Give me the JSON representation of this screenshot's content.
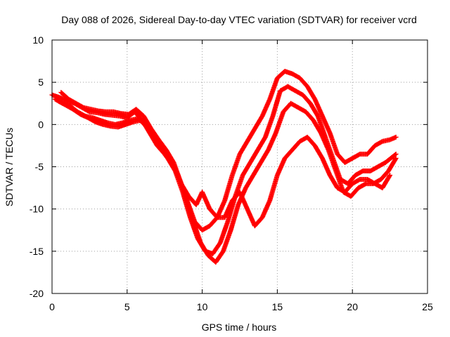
{
  "chart_data": {
    "type": "scatter",
    "title": "Day 088 of 2026, Sidereal Day-to-day VTEC variation (SDTVAR) for receiver vcrd",
    "xlabel": "GPS time / hours",
    "ylabel": "SDTVAR / TECUs",
    "xlim": [
      0,
      25
    ],
    "ylim": [
      -20,
      10
    ],
    "x_ticks": [
      0,
      5,
      10,
      15,
      20,
      25
    ],
    "y_ticks": [
      -20,
      -15,
      -10,
      -5,
      0,
      5,
      10
    ],
    "grid": true,
    "legend": "none",
    "marker": "plus",
    "color": "#ff0000",
    "series": [
      {
        "name": "track-1",
        "x": [
          0.0,
          0.5,
          1.0,
          1.5,
          2.0,
          2.5,
          3.0,
          3.5,
          4.0,
          4.5,
          5.0,
          5.5,
          6.0,
          6.5,
          7.0,
          7.5,
          8.0,
          8.5,
          9.0,
          9.5,
          10.0,
          10.5,
          11.0,
          11.5,
          12.0,
          12.5,
          13.0,
          13.5,
          14.0,
          14.5,
          15.0,
          15.5,
          16.0,
          16.5,
          17.0,
          17.5,
          18.0,
          18.5,
          19.0,
          19.5,
          20.0,
          20.5,
          21.0,
          21.5,
          22.0,
          22.5,
          22.9
        ],
        "y": [
          3.5,
          3.2,
          2.8,
          2.5,
          2.0,
          1.5,
          1.4,
          1.2,
          1.1,
          1.0,
          0.8,
          1.5,
          0.5,
          -1.0,
          -2.5,
          -3.5,
          -4.5,
          -6.5,
          -9.0,
          -11.5,
          -12.5,
          -12.0,
          -11.0,
          -9.0,
          -6.0,
          -3.5,
          -2.0,
          -0.5,
          1.0,
          3.0,
          5.5,
          6.3,
          6.0,
          5.5,
          4.5,
          3.0,
          1.0,
          -1.0,
          -3.5,
          -4.5,
          -4.0,
          -3.5,
          -3.5,
          -2.5,
          -2.0,
          -1.8,
          -1.5
        ]
      },
      {
        "name": "track-2",
        "x": [
          0.2,
          0.7,
          1.2,
          1.7,
          2.2,
          2.7,
          3.2,
          3.7,
          4.2,
          4.7,
          5.2,
          5.7,
          6.2,
          6.7,
          7.2,
          7.7,
          8.2,
          8.7,
          9.2,
          9.7,
          10.2,
          10.7,
          11.2,
          11.7,
          12.2,
          12.7,
          13.2,
          13.7,
          14.2,
          14.7,
          15.2,
          15.7,
          16.2,
          16.7,
          17.2,
          17.7,
          18.2,
          18.7,
          19.2,
          19.7,
          20.2,
          20.7,
          21.2,
          21.7,
          22.2,
          22.9
        ],
        "y": [
          3.0,
          2.5,
          2.2,
          1.5,
          1.0,
          0.8,
          0.5,
          0.2,
          0.0,
          0.2,
          0.5,
          0.7,
          0.0,
          -1.5,
          -2.8,
          -4.0,
          -5.5,
          -8.0,
          -11.0,
          -13.5,
          -15.0,
          -15.3,
          -14.0,
          -11.5,
          -8.5,
          -6.0,
          -4.5,
          -3.0,
          -1.5,
          1.0,
          4.0,
          4.5,
          4.0,
          3.5,
          2.5,
          1.0,
          -1.5,
          -4.0,
          -6.5,
          -7.0,
          -6.0,
          -5.5,
          -5.5,
          -5.0,
          -4.5,
          -3.5
        ]
      },
      {
        "name": "track-3",
        "x": [
          0.4,
          0.9,
          1.4,
          1.9,
          2.4,
          2.9,
          3.4,
          3.9,
          4.4,
          4.9,
          5.4,
          5.9,
          6.4,
          6.9,
          7.4,
          7.9,
          8.4,
          8.9,
          9.4,
          9.9,
          10.4,
          10.9,
          11.4,
          11.9,
          12.4,
          12.9,
          13.4,
          13.9,
          14.4,
          14.9,
          15.4,
          15.9,
          16.4,
          16.9,
          17.4,
          17.9,
          18.4,
          18.9,
          19.4,
          19.9,
          20.4,
          20.9,
          21.4,
          21.9,
          22.4,
          22.9
        ],
        "y": [
          2.8,
          2.3,
          1.8,
          1.2,
          0.8,
          0.3,
          0.0,
          -0.2,
          -0.3,
          0.0,
          0.3,
          0.5,
          -0.5,
          -2.0,
          -3.2,
          -4.5,
          -6.0,
          -8.5,
          -11.5,
          -14.0,
          -15.5,
          -16.3,
          -15.0,
          -12.5,
          -9.5,
          -7.5,
          -6.0,
          -4.5,
          -3.0,
          -1.0,
          1.5,
          2.5,
          2.0,
          1.5,
          0.5,
          -1.0,
          -3.0,
          -5.5,
          -8.0,
          -8.5,
          -7.5,
          -7.0,
          -7.0,
          -6.5,
          -5.5,
          -4.0
        ]
      },
      {
        "name": "track-4",
        "x": [
          0.6,
          1.1,
          1.6,
          2.1,
          2.6,
          3.1,
          3.6,
          4.1,
          4.6,
          5.1,
          5.6,
          6.1,
          6.6,
          7.1,
          7.6,
          8.1,
          8.6,
          9.1,
          9.6,
          10.0,
          10.5,
          11.0,
          11.5,
          12.0,
          12.5,
          13.0,
          13.5,
          14.0,
          14.5,
          15.0,
          15.5,
          16.0,
          16.5,
          17.0,
          17.5,
          18.0,
          18.5,
          19.0,
          19.5,
          20.0,
          20.5,
          21.0,
          21.5,
          22.0,
          22.5
        ],
        "y": [
          3.8,
          3.0,
          2.5,
          2.0,
          1.8,
          1.6,
          1.5,
          1.5,
          1.3,
          1.2,
          1.8,
          1.0,
          -0.5,
          -1.8,
          -3.0,
          -4.5,
          -7.0,
          -8.5,
          -9.5,
          -8.0,
          -10.0,
          -11.0,
          -11.0,
          -9.0,
          -8.0,
          -10.0,
          -12.0,
          -11.0,
          -9.0,
          -6.0,
          -4.0,
          -3.0,
          -2.0,
          -1.5,
          -2.5,
          -4.0,
          -6.0,
          -7.5,
          -8.0,
          -7.0,
          -6.5,
          -6.5,
          -7.0,
          -7.5,
          -6.0
        ]
      }
    ]
  }
}
